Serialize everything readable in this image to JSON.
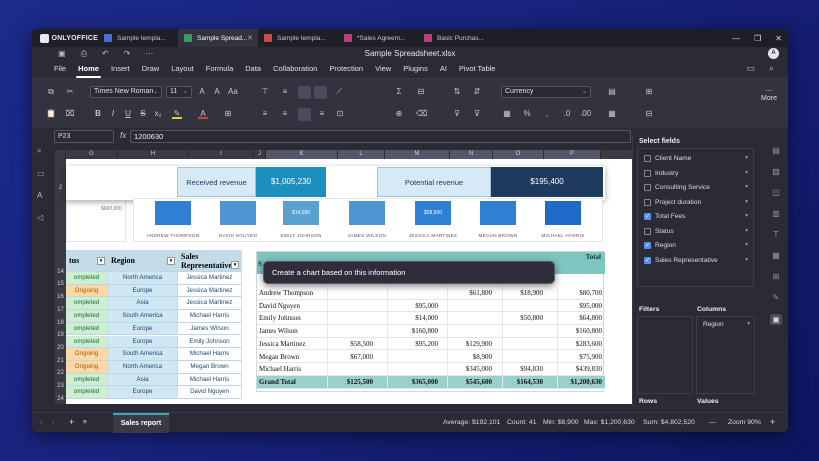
{
  "titlebar": {
    "brand": "ONLYOFFICE",
    "tabs": [
      {
        "label": "Sample templa...",
        "color": "#4a6fd3"
      },
      {
        "label": "Sample Spread...",
        "color": "#3c9a6a"
      },
      {
        "label": "Sample templa...",
        "color": "#c94b4b"
      },
      {
        "label": "*Sales Agreem...",
        "color": "#b8417c"
      },
      {
        "label": "Basic Purchas...",
        "color": "#b8417c"
      }
    ]
  },
  "file_name": "Sample Spreadsheet.xlsx",
  "avatar": "A",
  "menu": [
    "File",
    "Home",
    "Insert",
    "Draw",
    "Layout",
    "Formula",
    "Data",
    "Collaboration",
    "Protection",
    "View",
    "Plugins",
    "AI",
    "Pivot Table"
  ],
  "toolbar": {
    "font": "Times New Roman",
    "font_size": "11",
    "number_format": "Currency",
    "more": "More"
  },
  "formula": {
    "cell": "P23",
    "fx": "fx",
    "value": "1200630"
  },
  "columns": [
    "G",
    "H",
    "I",
    "J",
    "K",
    "L",
    "M",
    "N",
    "O",
    "P"
  ],
  "rows": [
    "2",
    "",
    "",
    "",
    "",
    "",
    "",
    "14",
    "15",
    "16",
    "17",
    "18",
    "19",
    "20",
    "21",
    "22",
    "23",
    "24"
  ],
  "kpi": {
    "row_label": "2",
    "received_label": "Received revenue",
    "received_value": "$1,005,230",
    "potential_label": "Potential revenue",
    "potential_value": "$195,400"
  },
  "chart": {
    "axis_label": "$600,000",
    "bar_label": "$14,000",
    "bar_label2": "$58,500",
    "people": [
      "ANDREW THOMPSON",
      "DAVID NGUYEN",
      "EMILY JOHNSON",
      "JAMES WILSON",
      "JESSICA MARTINEZ",
      "MEGAN BROWN",
      "MICHAEL HARRIS"
    ]
  },
  "left_table": {
    "headers": [
      "tus",
      "Region",
      "Sales Representative"
    ],
    "rows": [
      {
        "status": "ompleted",
        "region": "North America",
        "rep": "Jessica Martinez"
      },
      {
        "status": "Ongoing",
        "region": "Europe",
        "rep": "Jessica Martinez"
      },
      {
        "status": "ompleted",
        "region": "Asia",
        "rep": "Jessica Martinez"
      },
      {
        "status": "ompleted",
        "region": "South America",
        "rep": "Michael Harris"
      },
      {
        "status": "ompleted",
        "region": "Europe",
        "rep": "James Wilson"
      },
      {
        "status": "ompleted",
        "region": "Europe",
        "rep": "Emily Johnson"
      },
      {
        "status": "Ongoing",
        "region": "South America",
        "rep": "Michael Harris"
      },
      {
        "status": "Ongoing",
        "region": "North America",
        "rep": "Megan Brown"
      },
      {
        "status": "ompleted",
        "region": "Asia",
        "rep": "Michael Harris"
      },
      {
        "status": "ompleted",
        "region": "Europe",
        "rep": "David Nguyen"
      }
    ]
  },
  "ai_prompt": "Create a chart based on this information",
  "pivot": {
    "header_total": "Total",
    "rows": [
      {
        "name": "Andrew Thompson",
        "c1": "",
        "c2": "",
        "c3": "$61,800",
        "c4": "$18,900",
        "c5": "$80,700"
      },
      {
        "name": "David Nguyen",
        "c1": "",
        "c2": "$95,000",
        "c3": "",
        "c4": "",
        "c5": "$95,000"
      },
      {
        "name": "Emily Johnson",
        "c1": "",
        "c2": "$14,000",
        "c3": "",
        "c4": "$50,800",
        "c5": "$64,800"
      },
      {
        "name": "James Wilson",
        "c1": "",
        "c2": "$160,800",
        "c3": "",
        "c4": "",
        "c5": "$160,800"
      },
      {
        "name": "Jessica Martinez",
        "c1": "$58,500",
        "c2": "$95,200",
        "c3": "$129,900",
        "c4": "",
        "c5": "$283,600"
      },
      {
        "name": "Megan Brown",
        "c1": "$67,000",
        "c2": "",
        "c3": "$8,900",
        "c4": "",
        "c5": "$75,900"
      },
      {
        "name": "Michael Harris",
        "c1": "",
        "c2": "",
        "c3": "$345,000",
        "c4": "$94,830",
        "c5": "$439,830"
      }
    ],
    "grand": {
      "name": "Grand Total",
      "c1": "$125,500",
      "c2": "$365,000",
      "c3": "$545,600",
      "c4": "$164,530",
      "c5": "$1,200,630"
    }
  },
  "panel": {
    "title": "Select fields",
    "fields": [
      {
        "label": "Client Name",
        "checked": false
      },
      {
        "label": "Industry",
        "checked": false
      },
      {
        "label": "Consulting Service",
        "checked": false
      },
      {
        "label": "Project duration",
        "checked": false
      },
      {
        "label": "Total Fees",
        "checked": true
      },
      {
        "label": "Status",
        "checked": false
      },
      {
        "label": "Region",
        "checked": true
      },
      {
        "label": "Sales Representative",
        "checked": true
      }
    ],
    "filters": "Filters",
    "columns": "Columns",
    "column_item": "Region",
    "rows": "Rows",
    "values": "Values"
  },
  "status": {
    "sheet": "Sales report",
    "average": "Average: $192,101",
    "count": "Count: 41",
    "min": "Min: $8,900",
    "max": "Max: $1,200,630",
    "sum": "Sum: $4,802,520",
    "zoom": "Zoom 90%"
  },
  "colors": {
    "accent": "#36a9b5",
    "kpi_dark": "#1f3a5f",
    "kpi_teal": "#1d8fbf",
    "kpi_light": "#d6e9f4",
    "pivot_header": "#7fc6c0"
  }
}
